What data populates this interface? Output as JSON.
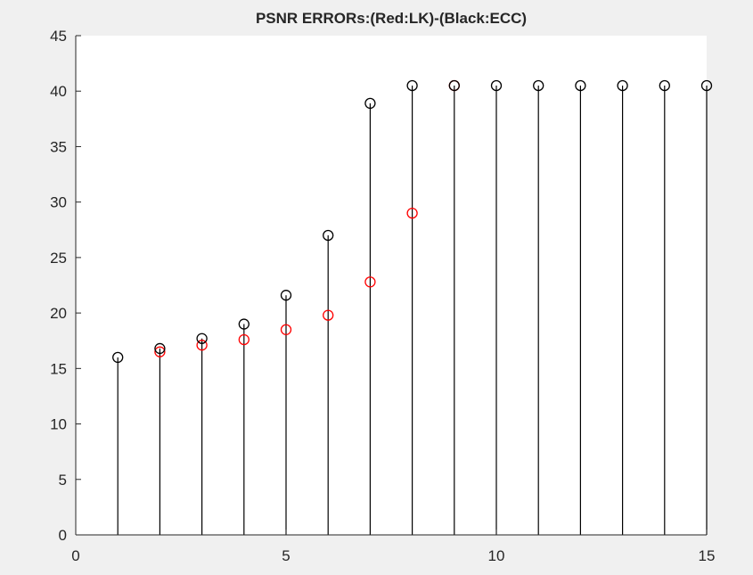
{
  "colors": {
    "figure_background": "#f0f0f0",
    "axes_background": "#ffffff",
    "series_lk": "#ff0000",
    "series_ecc": "#000000",
    "stem": "#000000",
    "axis": "#262626",
    "text": "#262626"
  },
  "chart_data": {
    "type": "scatter",
    "style": "stem",
    "title": "PSNR ERRORs:(Red:LK)-(Black:ECC)",
    "xlabel": "",
    "ylabel": "",
    "xlim": [
      0,
      15
    ],
    "ylim": [
      0,
      45
    ],
    "grid": false,
    "legend": "none",
    "xticks": [
      0,
      5,
      10,
      15
    ],
    "xtick_labels": [
      "0",
      "5",
      "10",
      "15"
    ],
    "yticks": [
      0,
      5,
      10,
      15,
      20,
      25,
      30,
      35,
      40,
      45
    ],
    "ytick_labels": [
      "0",
      "5",
      "10",
      "15",
      "20",
      "25",
      "30",
      "35",
      "40",
      "45"
    ],
    "x": [
      1,
      2,
      3,
      4,
      5,
      6,
      7,
      8,
      9,
      10,
      11,
      12,
      13,
      14,
      15
    ],
    "series": [
      {
        "id": "lk",
        "marker": "circle",
        "stems": false,
        "x": [
          2,
          3,
          4,
          5,
          6,
          7,
          8,
          9
        ],
        "values": [
          16.5,
          17.1,
          17.6,
          18.5,
          19.8,
          22.8,
          29.0,
          40.5
        ]
      },
      {
        "id": "ecc",
        "marker": "circle",
        "stems": true,
        "x": [
          1,
          2,
          3,
          4,
          5,
          6,
          7,
          8,
          9,
          10,
          11,
          12,
          13,
          14,
          15
        ],
        "values": [
          16.0,
          16.8,
          17.7,
          19.0,
          21.6,
          27.0,
          38.9,
          40.5,
          40.5,
          40.5,
          40.5,
          40.5,
          40.5,
          40.5,
          40.5
        ]
      }
    ]
  }
}
